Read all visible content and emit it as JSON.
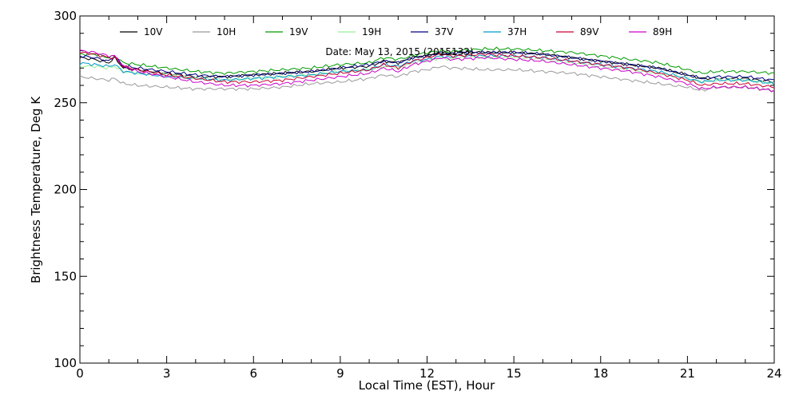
{
  "chart_data": {
    "type": "line",
    "title": "",
    "annotation": "Date: May 13, 2015 (2015133)",
    "xlabel": "Local Time (EST), Hour",
    "ylabel": "Brightness Temperature, Deg K",
    "xlim": [
      0,
      24
    ],
    "ylim": [
      100,
      300
    ],
    "xticks": [
      0,
      3,
      6,
      9,
      12,
      15,
      18,
      21,
      24
    ],
    "yticks": [
      100,
      150,
      200,
      250,
      300
    ],
    "grid": false,
    "legend": "top, horizontal",
    "x": [
      0,
      0.5,
      1,
      1.2,
      1.5,
      2,
      3,
      4,
      5,
      6,
      7,
      8,
      9,
      10,
      10.5,
      11,
      11.5,
      12,
      12.5,
      12.8,
      13,
      14,
      15,
      16,
      17,
      18,
      19,
      20,
      21,
      21.5,
      22,
      23,
      24
    ],
    "series": [
      {
        "name": "10V",
        "color": "#000000",
        "values": [
          276,
          275,
          273,
          276,
          270,
          269,
          267,
          265,
          265,
          266,
          267,
          268,
          270,
          271,
          274,
          273,
          276,
          277,
          279,
          278,
          279,
          279,
          279,
          278,
          276,
          274,
          272,
          270,
          266,
          264,
          264,
          264,
          262
        ]
      },
      {
        "name": "10H",
        "color": "#999999",
        "values": [
          265,
          264,
          263,
          264,
          261,
          260,
          259,
          258,
          258,
          258,
          259,
          261,
          262,
          264,
          266,
          265,
          268,
          269,
          271,
          270,
          270,
          269,
          269,
          268,
          267,
          265,
          263,
          261,
          259,
          257,
          259,
          259,
          257
        ]
      },
      {
        "name": "19V",
        "color": "#009900",
        "values": [
          278,
          278,
          276,
          277,
          273,
          272,
          270,
          268,
          267,
          268,
          269,
          270,
          272,
          273,
          276,
          275,
          277,
          279,
          280,
          279,
          280,
          281,
          281,
          280,
          279,
          277,
          275,
          273,
          269,
          267,
          268,
          268,
          267
        ]
      },
      {
        "name": "19H",
        "color": "#99ee99",
        "values": [
          271,
          271,
          270,
          271,
          268,
          267,
          266,
          264,
          263,
          264,
          265,
          266,
          268,
          269,
          271,
          270,
          273,
          274,
          276,
          275,
          276,
          276,
          276,
          275,
          273,
          271,
          269,
          267,
          264,
          262,
          263,
          263,
          261
        ]
      },
      {
        "name": "37V",
        "color": "#000080",
        "values": [
          277,
          276,
          274,
          277,
          271,
          270,
          268,
          266,
          265,
          266,
          267,
          268,
          270,
          272,
          274,
          273,
          276,
          277,
          279,
          278,
          279,
          279,
          279,
          278,
          276,
          274,
          272,
          270,
          266,
          264,
          265,
          265,
          263
        ]
      },
      {
        "name": "37H",
        "color": "#0099cc",
        "values": [
          273,
          272,
          271,
          272,
          268,
          267,
          265,
          264,
          263,
          264,
          265,
          266,
          268,
          269,
          272,
          271,
          274,
          275,
          277,
          276,
          277,
          277,
          277,
          276,
          274,
          272,
          270,
          268,
          264,
          262,
          263,
          263,
          261
        ]
      },
      {
        "name": "89V",
        "color": "#cc0033",
        "values": [
          279,
          278,
          276,
          276,
          271,
          269,
          266,
          264,
          262,
          262,
          263,
          265,
          267,
          269,
          272,
          270,
          274,
          276,
          278,
          277,
          277,
          278,
          277,
          276,
          274,
          272,
          270,
          267,
          263,
          260,
          261,
          261,
          259
        ]
      },
      {
        "name": "89H",
        "color": "#cc00cc",
        "values": [
          280,
          279,
          277,
          277,
          271,
          268,
          265,
          262,
          260,
          260,
          261,
          263,
          265,
          267,
          270,
          268,
          272,
          274,
          276,
          275,
          275,
          276,
          275,
          274,
          272,
          270,
          268,
          265,
          261,
          258,
          259,
          259,
          257
        ]
      }
    ]
  }
}
